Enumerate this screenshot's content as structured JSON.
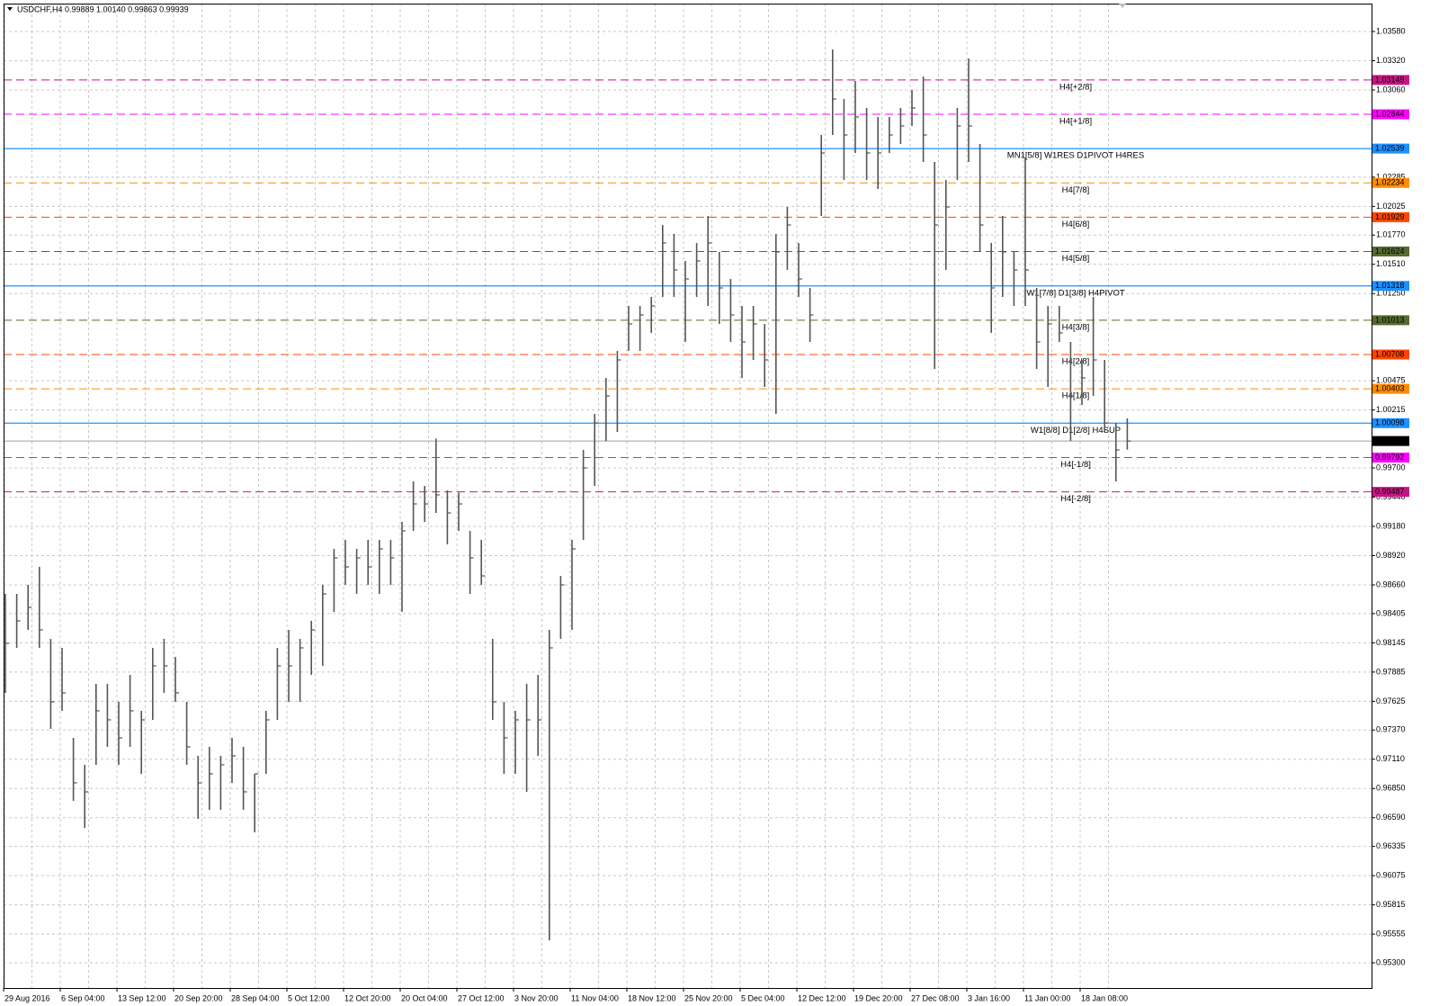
{
  "chart_data": {
    "type": "ohlc",
    "title": "USDCHF,H4  0.99889 1.00140 0.99863 0.99939",
    "categories": [
      "29 Aug 2016",
      null,
      null,
      null,
      null,
      "6 Sep 04:00",
      null,
      null,
      null,
      null,
      "13 Sep 12:00",
      null,
      null,
      null,
      null,
      "20 Sep 20:00",
      null,
      null,
      null,
      null,
      "28 Sep 04:00",
      null,
      null,
      null,
      null,
      "5 Oct 12:00",
      null,
      null,
      null,
      null,
      "12 Oct 20:00",
      null,
      null,
      null,
      null,
      "20 Oct 04:00",
      null,
      null,
      null,
      null,
      "27 Oct 12:00",
      null,
      null,
      null,
      null,
      "3 Nov 20:00",
      null,
      null,
      null,
      null,
      "11 Nov 04:00",
      null,
      null,
      null,
      null,
      "18 Nov 12:00",
      null,
      null,
      null,
      null,
      "25 Nov 20:00",
      null,
      null,
      null,
      null,
      "5 Dec 04:00",
      null,
      null,
      null,
      null,
      "12 Dec 12:00",
      null,
      null,
      null,
      null,
      "19 Dec 20:00",
      null,
      null,
      null,
      null,
      "27 Dec 08:00",
      null,
      null,
      null,
      null,
      "3 Jan 16:00",
      null,
      null,
      null,
      null,
      "11 Jan 00:00",
      null,
      null,
      null,
      null,
      "18 Jan 08:00",
      null,
      null,
      null,
      null
    ],
    "high": [
      0.9858,
      0.9858,
      0.9866,
      0.9882,
      0.9818,
      0.981,
      0.973,
      0.9706,
      0.9778,
      0.9778,
      0.9762,
      0.9786,
      0.9754,
      0.981,
      0.9818,
      0.9802,
      0.9762,
      0.9714,
      0.9722,
      0.9714,
      0.973,
      0.9722,
      0.9698,
      0.9754,
      0.981,
      0.9826,
      0.9818,
      0.9834,
      0.9866,
      0.9898,
      0.9906,
      0.9898,
      0.9906,
      0.9906,
      0.9906,
      0.9922,
      0.9958,
      0.9954,
      0.9996,
      0.995,
      0.9948,
      0.9914,
      0.9906,
      0.9818,
      0.9762,
      0.9754,
      0.9778,
      0.9786,
      0.9826,
      0.9874,
      0.9906,
      0.9986,
      1.0018,
      1.005,
      1.0074,
      1.0114,
      1.0114,
      1.0122,
      1.0186,
      1.0178,
      1.0154,
      1.017,
      1.0194,
      1.0162,
      1.0138,
      1.0114,
      1.0114,
      1.0098,
      1.0178,
      1.0202,
      1.017,
      1.013,
      1.0266,
      1.0342,
      1.0298,
      1.0314,
      1.029,
      1.0282,
      1.0282,
      1.029,
      1.0306,
      1.0318,
      1.0242,
      1.0226,
      1.029,
      1.0334,
      1.0258,
      1.017,
      1.0194,
      1.0162,
      1.0246,
      1.013,
      1.0114,
      1.0114,
      1.0082,
      1.0066,
      1.0122,
      1.0066,
      1.001,
      1.0014
    ],
    "low": [
      0.977,
      0.981,
      0.9826,
      0.981,
      0.9738,
      0.9754,
      0.9674,
      0.965,
      0.9706,
      0.9722,
      0.9706,
      0.9722,
      0.9698,
      0.9746,
      0.977,
      0.9762,
      0.9706,
      0.9658,
      0.9666,
      0.9666,
      0.969,
      0.9666,
      0.9646,
      0.9698,
      0.9746,
      0.9762,
      0.9762,
      0.9786,
      0.9794,
      0.9842,
      0.9866,
      0.9858,
      0.9866,
      0.9858,
      0.9866,
      0.9842,
      0.9914,
      0.9922,
      0.993,
      0.9902,
      0.9914,
      0.9858,
      0.9866,
      0.9746,
      0.9698,
      0.9698,
      0.9682,
      0.9714,
      0.955,
      0.9818,
      0.9826,
      0.9906,
      0.9954,
      0.9994,
      1.0002,
      1.0074,
      1.0074,
      1.009,
      1.0122,
      1.0122,
      1.0082,
      1.0122,
      1.0114,
      1.0098,
      1.0082,
      1.005,
      1.0066,
      1.0042,
      1.0018,
      1.0146,
      1.0122,
      1.0082,
      1.0194,
      1.0266,
      1.0226,
      1.025,
      1.0226,
      1.0218,
      1.025,
      1.0258,
      1.0274,
      1.0242,
      1.0058,
      1.0146,
      1.0226,
      1.0242,
      1.0162,
      1.009,
      1.0122,
      1.0114,
      1.0114,
      1.0058,
      1.0042,
      1.0082,
      0.9994,
      1.0026,
      1.0034,
      1.0002,
      0.9958,
      0.99863
    ],
    "close": [
      0.9814,
      0.9834,
      0.9846,
      0.9826,
      0.9762,
      0.977,
      0.969,
      0.9682,
      0.9754,
      0.9746,
      0.973,
      0.9754,
      0.9746,
      0.9794,
      0.9794,
      0.977,
      0.9722,
      0.969,
      0.9698,
      0.9706,
      0.9714,
      0.9682,
      0.9698,
      0.9746,
      0.9794,
      0.9794,
      0.981,
      0.9826,
      0.9858,
      0.989,
      0.9882,
      0.989,
      0.9882,
      0.9898,
      0.989,
      0.9914,
      0.9938,
      0.9938,
      0.9946,
      0.993,
      0.9938,
      0.989,
      0.9874,
      0.9762,
      0.973,
      0.9746,
      0.9746,
      0.9746,
      0.981,
      0.9866,
      0.9898,
      0.997,
      1.001,
      1.0034,
      1.0066,
      1.0098,
      1.0106,
      1.0114,
      1.017,
      1.0146,
      1.0138,
      1.0154,
      1.017,
      1.013,
      1.0106,
      1.0082,
      1.0098,
      1.0066,
      1.0162,
      1.0186,
      1.0138,
      1.0106,
      1.025,
      1.0298,
      1.0266,
      1.0282,
      1.025,
      1.025,
      1.0266,
      1.0274,
      1.029,
      1.0266,
      1.0186,
      1.0202,
      1.0274,
      1.0274,
      1.0186,
      1.013,
      1.0162,
      1.0146,
      1.0146,
      1.0082,
      1.0098,
      1.009,
      1.0034,
      1.005,
      1.0066,
      1.001,
      0.9986,
      0.99939
    ],
    "bar_color": "#555555",
    "ylim": [
      0.95076,
      1.03828
    ],
    "yticks": [
      {
        "value": 1.0358,
        "label": "1.03580"
      },
      {
        "value": 1.0332,
        "label": "1.03320"
      },
      {
        "value": 1.0306,
        "label": "1.03060"
      },
      1.02285,
      1.02025,
      {
        "value": 1.0177,
        "label": "1.01770"
      },
      {
        "value": 1.0151,
        "label": "1.01510"
      },
      {
        "value": 1.0125,
        "label": "1.01250"
      },
      1.00475,
      1.00215,
      {
        "value": 0.997,
        "label": "0.99700"
      },
      {
        "value": 0.9944,
        "label": "0.99440"
      },
      {
        "value": 0.9918,
        "label": "0.99180"
      },
      {
        "value": 0.9892,
        "label": "0.98920"
      },
      {
        "value": 0.9866,
        "label": "0.98660"
      },
      0.98405,
      0.98145,
      0.97885,
      0.97625,
      {
        "value": 0.9737,
        "label": "0.97370"
      },
      {
        "value": 0.9711,
        "label": "0.97110"
      },
      {
        "value": 0.9685,
        "label": "0.96850"
      },
      {
        "value": 0.9659,
        "label": "0.96590"
      },
      0.96335,
      0.96075,
      0.95815,
      0.95555,
      {
        "value": 0.953,
        "label": "0.95300"
      }
    ],
    "grid": true,
    "levels": [
      {
        "value": 1.03149,
        "label": "H4[+2/8]",
        "color": "#c71585",
        "style": "dashed"
      },
      {
        "value": 1.02844,
        "label": "H4[+1/8]",
        "color": "#ff00ff",
        "style": "dashed"
      },
      {
        "value": 1.02539,
        "label": "MN1[5/8] W1RES D1PIVOT H4RES",
        "color": "#1e90ff",
        "style": "solid"
      },
      {
        "value": 1.02234,
        "label": "H4[7/8]",
        "color": "#ff8c00",
        "style": "dashed"
      },
      {
        "value": 1.01929,
        "label": "H4[6/8]",
        "color": "#ff4500",
        "style": "dashed"
      },
      {
        "value": 1.01624,
        "label": "H4[5/8]",
        "color": "#556b2f",
        "style": "dashed"
      },
      {
        "value": 1.01318,
        "label": "W1[7/8] D1[3/8] H4PIVOT",
        "color": "#1e90ff",
        "style": "solid"
      },
      {
        "value": 1.01013,
        "label": "H4[3/8]",
        "color": "#556b2f",
        "style": "dashed"
      },
      {
        "value": 1.00708,
        "label": "H4[2/8]",
        "color": "#ff4500",
        "style": "dashed"
      },
      {
        "value": 1.00403,
        "label": "H4[1/8]",
        "color": "#ff8c00",
        "style": "dashed"
      },
      {
        "value": 1.00098,
        "label": "W1[8/8] D1[2/8] H4SUP",
        "color": "#1e90ff",
        "style": "solid"
      },
      {
        "value": 0.99792,
        "label": "H4[-1/8]",
        "color": "#ff00ff",
        "style": "dashed"
      },
      {
        "value": 0.99487,
        "label": "H4[-2/8]",
        "color": "#c71585",
        "style": "dashed"
      }
    ],
    "bid": {
      "value": 0.99939,
      "color": "#000000",
      "line_color": "#a0a0a0"
    }
  }
}
